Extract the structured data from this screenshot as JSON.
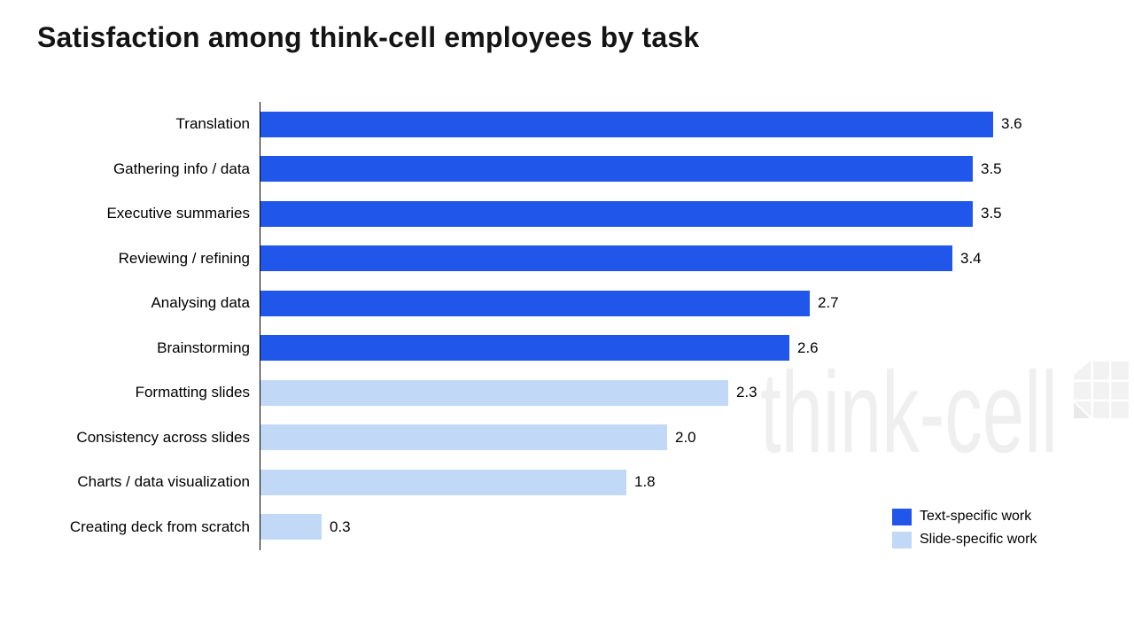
{
  "title": "Satisfaction among think-cell employees by task",
  "watermark": {
    "text": "think-cell",
    "logo": "thinkcell-grid-logo",
    "color": "#efefef"
  },
  "chart_data": {
    "type": "bar",
    "orientation": "horizontal",
    "title": "Satisfaction among think-cell employees by task",
    "categories": [
      "Translation",
      "Gathering info / data",
      "Executive summaries",
      "Reviewing / refining",
      "Analysing data",
      "Brainstorming",
      "Formatting slides",
      "Consistency across slides",
      "Charts / data visualization",
      "Creating deck from scratch"
    ],
    "values": [
      3.6,
      3.5,
      3.5,
      3.4,
      2.7,
      2.6,
      2.3,
      2.0,
      1.8,
      0.3
    ],
    "value_labels": [
      "3.6",
      "3.5",
      "3.5",
      "3.4",
      "2.7",
      "2.6",
      "2.3",
      "2.0",
      "1.8",
      "0.3"
    ],
    "bar_series": [
      0,
      0,
      0,
      0,
      0,
      0,
      1,
      1,
      1,
      1
    ],
    "series": [
      {
        "name": "Text-specific work",
        "color": "#2156EB"
      },
      {
        "name": "Slide-specific work",
        "color": "#C1D8F7"
      }
    ],
    "xlim": [
      0,
      3.9
    ],
    "grid": false,
    "axis_color": "#000000",
    "legend_position": "bottom-right"
  }
}
